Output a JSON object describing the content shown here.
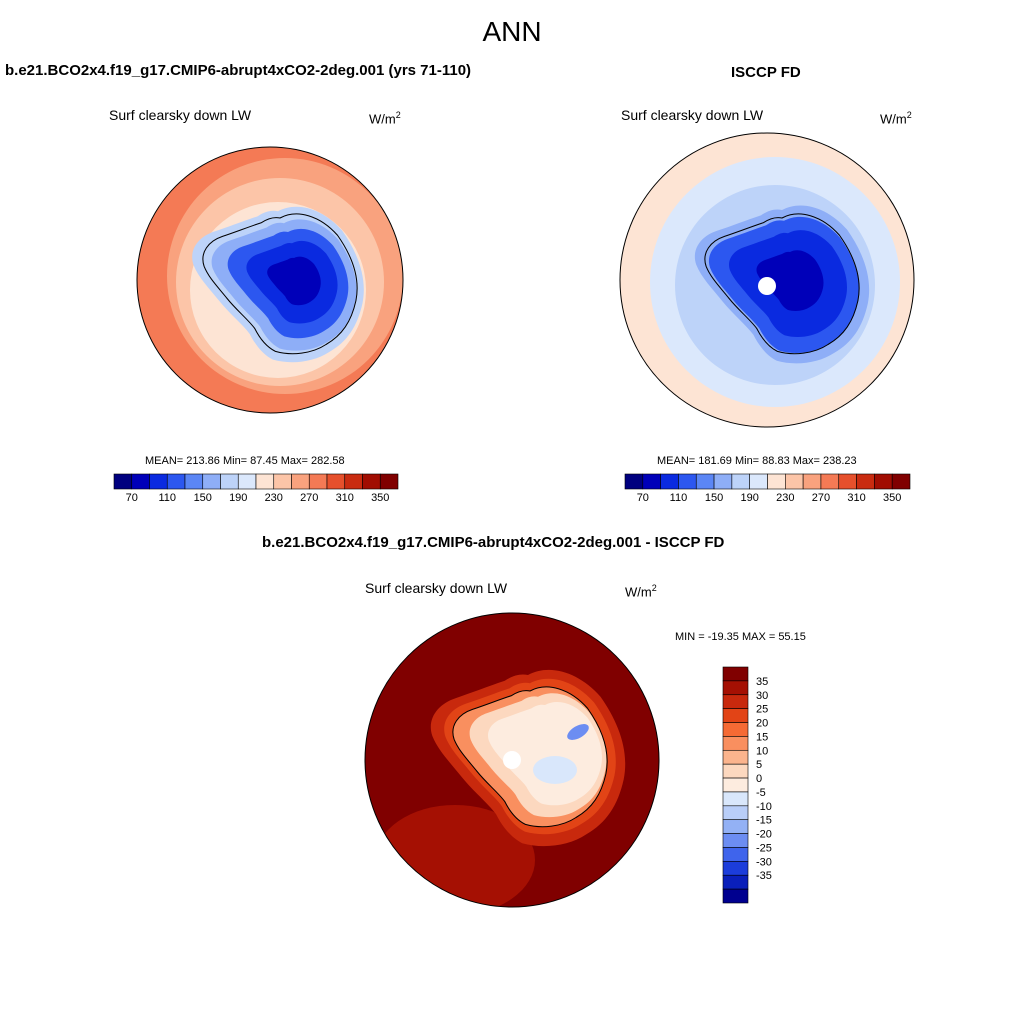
{
  "page": {
    "title": "ANN"
  },
  "colors": {
    "horizontal_bar": [
      "#00007f",
      "#0000b9",
      "#0a2ae0",
      "#2c57f0",
      "#5b86f5",
      "#8eaef7",
      "#bdd3f9",
      "#dbe8fc",
      "#fde4d4",
      "#fcc5a8",
      "#f9a27e",
      "#f47a55",
      "#e6502c",
      "#c92b10",
      "#a10d02",
      "#800000"
    ],
    "vertical_bar": [
      "#800000",
      "#a51003",
      "#c8290d",
      "#e24416",
      "#f56a34",
      "#f98f5f",
      "#fbb48d",
      "#fcd8bf",
      "#fdecdf",
      "#d9e7fb",
      "#b9cef8",
      "#93b1f5",
      "#6c8df2",
      "#3f64ec",
      "#1c3ddb",
      "#0a1fba",
      "#00008f"
    ]
  },
  "panels": [
    {
      "case_label": "b.e21.BCO2x4.f19_g17.CMIP6-abrupt4xCO2-2deg.001 (yrs 71-110)",
      "variable": "Surf clearsky down LW",
      "units": "W/m",
      "units_exp": "2",
      "stats": "MEAN= 213.86  Min=  87.45  Max= 282.58",
      "colorbar_labels": [
        "70",
        "110",
        "150",
        "190",
        "230",
        "270",
        "310",
        "350"
      ]
    },
    {
      "case_label": "ISCCP FD",
      "variable": "Surf clearsky down LW",
      "units": "W/m",
      "units_exp": "2",
      "stats": "MEAN= 181.69  Min=  88.83  Max= 238.23",
      "colorbar_labels": [
        "70",
        "110",
        "150",
        "190",
        "230",
        "270",
        "310",
        "350"
      ]
    }
  ],
  "diff_panel": {
    "case_label": "b.e21.BCO2x4.f19_g17.CMIP6-abrupt4xCO2-2deg.001 - ISCCP FD",
    "variable": "Surf clearsky down LW",
    "units": "W/m",
    "units_exp": "2",
    "stats": "MIN = -19.35 MAX =  55.15",
    "colorbar_labels": [
      "35",
      "30",
      "25",
      "20",
      "15",
      "10",
      "5",
      "0",
      "-5",
      "-10",
      "-15",
      "-20",
      "-25",
      "-30",
      "-35"
    ]
  }
}
